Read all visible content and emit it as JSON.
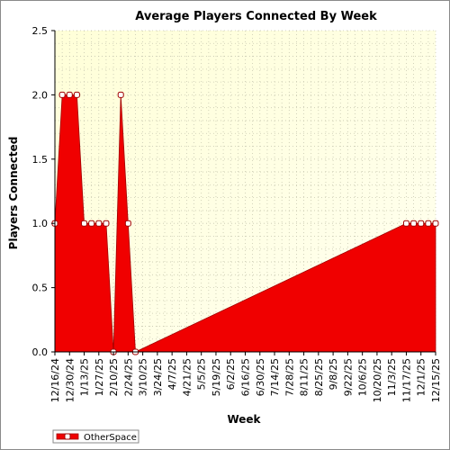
{
  "chart_data": {
    "type": "area",
    "title": "Average Players Connected By Week",
    "xlabel": "Week",
    "ylabel": "Players Connected",
    "ylim": [
      0,
      2.5
    ],
    "yticks": [
      "0.0",
      "0.5",
      "1.0",
      "1.5",
      "2.0",
      "2.5"
    ],
    "xtick_labels": [
      "12/16/24",
      "12/30/24",
      "1/13/25",
      "1/27/25",
      "2/10/25",
      "2/24/25",
      "3/10/25",
      "3/24/25",
      "4/7/25",
      "4/21/25",
      "5/5/25",
      "5/19/25",
      "6/2/25",
      "6/16/25",
      "6/30/25",
      "7/14/25",
      "7/28/25",
      "8/11/25",
      "8/25/25",
      "9/8/25",
      "9/22/25",
      "10/6/25",
      "10/20/25",
      "11/3/25",
      "11/17/25",
      "12/1/25",
      "12/15/25"
    ],
    "grid": true,
    "legend": "bottom-left",
    "colors": {
      "fill": "#f00000",
      "plot_bg": "#ffffe0",
      "marker_fill": "#ffffff",
      "marker_edge": "#a00000"
    },
    "series": [
      {
        "name": "OtherSpace",
        "points": [
          [
            "12/16/24",
            1
          ],
          [
            "12/23/24",
            2
          ],
          [
            "12/30/24",
            2
          ],
          [
            "1/6/25",
            2
          ],
          [
            "1/13/25",
            1
          ],
          [
            "1/20/25",
            1
          ],
          [
            "1/27/25",
            1
          ],
          [
            "2/3/25",
            1
          ],
          [
            "2/10/25",
            0
          ],
          [
            "2/17/25",
            2
          ],
          [
            "2/24/25",
            1
          ],
          [
            "3/3/25",
            0
          ],
          [
            "11/17/25",
            1
          ],
          [
            "11/24/25",
            1
          ],
          [
            "12/1/25",
            1
          ],
          [
            "12/8/25",
            1
          ],
          [
            "12/15/25",
            1
          ]
        ]
      }
    ]
  }
}
